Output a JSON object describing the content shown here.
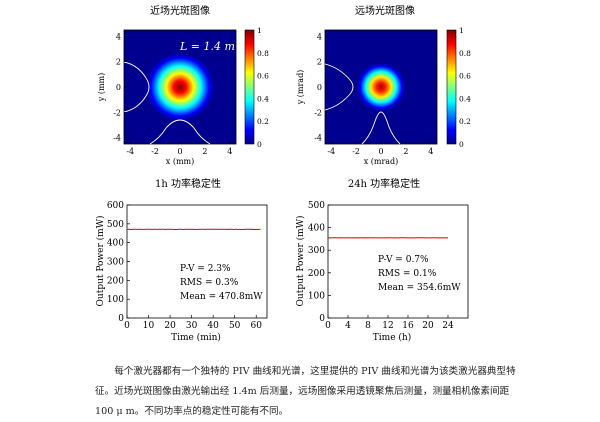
{
  "colors": {
    "trace": "#e00000",
    "contour": "#ffffff",
    "axis": "#000000"
  },
  "chart_data": [
    {
      "type": "heatmap",
      "title": "近场光斑图像",
      "xlabel": "x (mm)",
      "ylabel": "y (mm)",
      "annotation": "L = 1.4 m",
      "xlim": [
        -4.5,
        4.5
      ],
      "ylim": [
        -4.5,
        4.5
      ],
      "xticks": [
        -4,
        -2,
        0,
        2,
        4
      ],
      "yticks": [
        4,
        2,
        0,
        -2,
        -4
      ],
      "spot": {
        "cx": 0,
        "cy": 0,
        "sigma": 0.75
      },
      "colorbar": {
        "min": 0,
        "max": 1,
        "ticks": [
          "1",
          "0.8",
          "0.6",
          "0.4",
          "0.2",
          "0"
        ]
      }
    },
    {
      "type": "heatmap",
      "title": "远场光斑图像",
      "xlabel": "x (mrad)",
      "ylabel": "y (mrad)",
      "xlim": [
        -4.5,
        4.5
      ],
      "ylim": [
        -4.5,
        4.5
      ],
      "xticks": [
        -4,
        -2,
        0,
        2,
        4
      ],
      "yticks": [
        4,
        2,
        0,
        -2,
        -4
      ],
      "spot": {
        "cx": 0,
        "cy": 0,
        "sigma": 0.55
      },
      "colorbar": {
        "min": 0,
        "max": 1,
        "ticks": [
          "1",
          "0.8",
          "0.6",
          "0.4",
          "0.2",
          "0"
        ]
      }
    },
    {
      "type": "line",
      "title": "1h 功率稳定性",
      "xlabel": "Time (min)",
      "ylabel": "Output Power (mW)",
      "xlim": [
        0,
        65
      ],
      "ylim": [
        0,
        600
      ],
      "xticks": [
        0,
        10,
        20,
        30,
        40,
        50,
        60
      ],
      "yticks": [
        0,
        100,
        200,
        300,
        400,
        500,
        600
      ],
      "series": [
        {
          "x_start": 0,
          "x_end": 62,
          "mean": 470.8,
          "noise": 2
        }
      ],
      "stats": [
        "P-V    = 2.3%",
        "RMS  = 0.3%",
        "Mean = 470.8mW"
      ]
    },
    {
      "type": "line",
      "title": "24h 功率稳定性",
      "xlabel": "Time (h)",
      "ylabel": "Output Power (mW)",
      "xlim": [
        0,
        28
      ],
      "ylim": [
        0,
        500
      ],
      "xticks": [
        0,
        4,
        8,
        12,
        16,
        20,
        24
      ],
      "yticks": [
        0,
        100,
        200,
        300,
        400,
        500
      ],
      "series": [
        {
          "x_start": 0,
          "x_end": 24,
          "mean": 354.6,
          "noise": 0.8
        }
      ],
      "stats": [
        "P-V    = 0.7%",
        "RMS  = 0.1%",
        "Mean = 354.6mW"
      ]
    }
  ],
  "caption": "每个激光器都有一个独特的 PIV 曲线和光谱，这里提供的 PIV 曲线和光谱为该类激光器典型特征。近场光斑图像由激光输出经 1.4m 后测量，远场图像采用透镜聚焦后测量，测量相机像素间距 100 μ m。不同功率点的稳定性可能有不同。"
}
